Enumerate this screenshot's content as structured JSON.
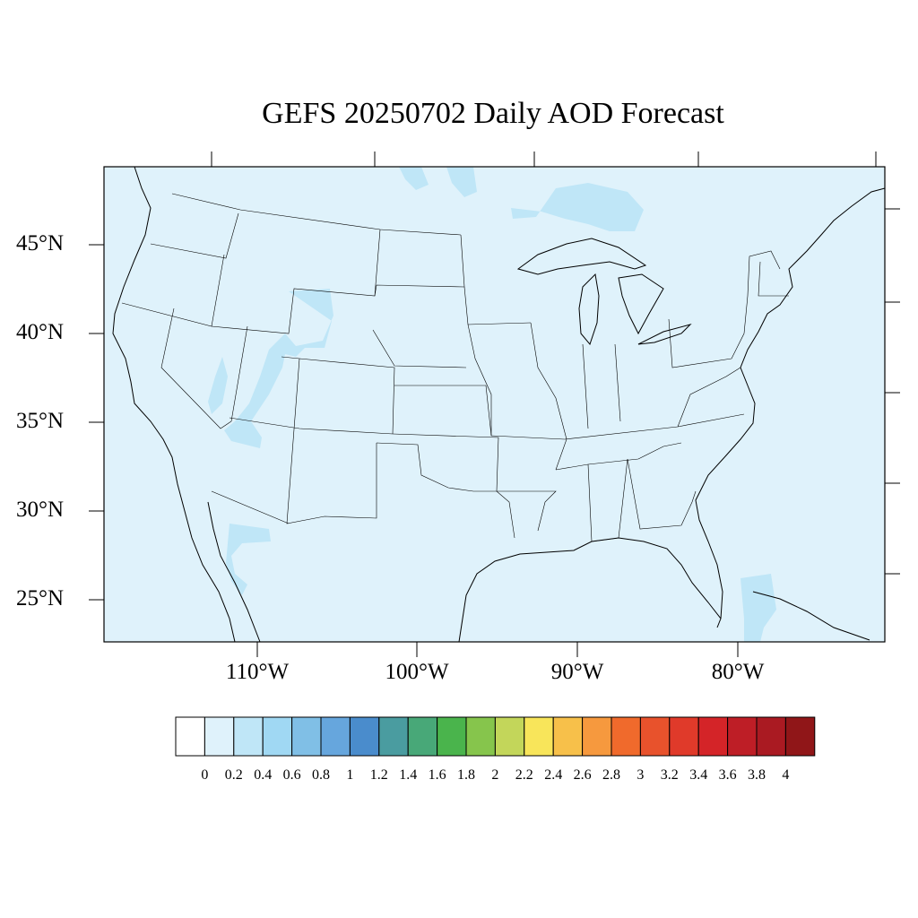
{
  "map": {
    "title": "GEFS 20250702 Daily AOD Forecast",
    "background_color": "#dff2fb",
    "plume_color": "#bfe6f7",
    "lat_labels": [
      "45°N",
      "40°N",
      "35°N",
      "30°N",
      "25°N"
    ],
    "lon_labels": [
      "110°W",
      "100°W",
      "90°W",
      "80°W"
    ]
  },
  "colorbar": {
    "labels": [
      "0",
      "0.2",
      "0.4",
      "0.6",
      "0.8",
      "1",
      "1.2",
      "1.4",
      "1.6",
      "1.8",
      "2",
      "2.2",
      "2.4",
      "2.6",
      "2.8",
      "3",
      "3.2",
      "3.4",
      "3.6",
      "3.8",
      "4"
    ],
    "colors": [
      "#ffffff",
      "#dff2fb",
      "#bfe6f7",
      "#a0d8f3",
      "#80bfe6",
      "#66a6dd",
      "#4a8ccc",
      "#4a9ca0",
      "#48a878",
      "#4ab44c",
      "#86c54c",
      "#c3d65a",
      "#f8e55a",
      "#f7c04a",
      "#f6993e",
      "#f06a2c",
      "#e8522c",
      "#e03a2a",
      "#d42428",
      "#be1e26",
      "#aa1a22",
      "#901618"
    ]
  }
}
